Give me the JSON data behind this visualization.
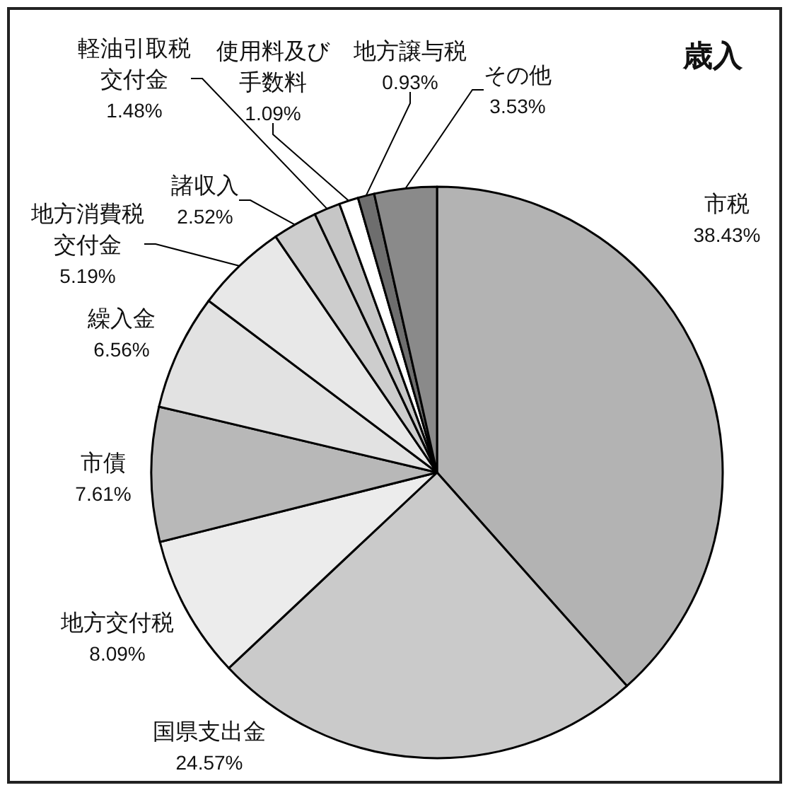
{
  "chart_data": {
    "type": "pie",
    "title": "歳入",
    "categories": [
      "市税",
      "国県支出金",
      "地方交付税",
      "市債",
      "繰入金",
      "地方消費税交付金",
      "諸収入",
      "軽油引取税交付金",
      "使用料及び手数料",
      "地方譲与税",
      "その他"
    ],
    "values": [
      38.43,
      24.57,
      8.09,
      7.61,
      6.56,
      5.19,
      2.52,
      1.48,
      1.09,
      0.93,
      3.53
    ],
    "value_labels": [
      "38.43%",
      "24.57%",
      "8.09%",
      "7.61%",
      "6.56%",
      "5.19%",
      "2.52%",
      "1.48%",
      "1.09%",
      "0.93%",
      "3.53%"
    ],
    "colors": [
      "#b3b3b3",
      "#cacaca",
      "#ececec",
      "#b8b8b8",
      "#e2e2e2",
      "#e8e8e8",
      "#cdcdcd",
      "#c6c6c6",
      "#ffffff",
      "#6e6e6e",
      "#8a8a8a"
    ]
  }
}
